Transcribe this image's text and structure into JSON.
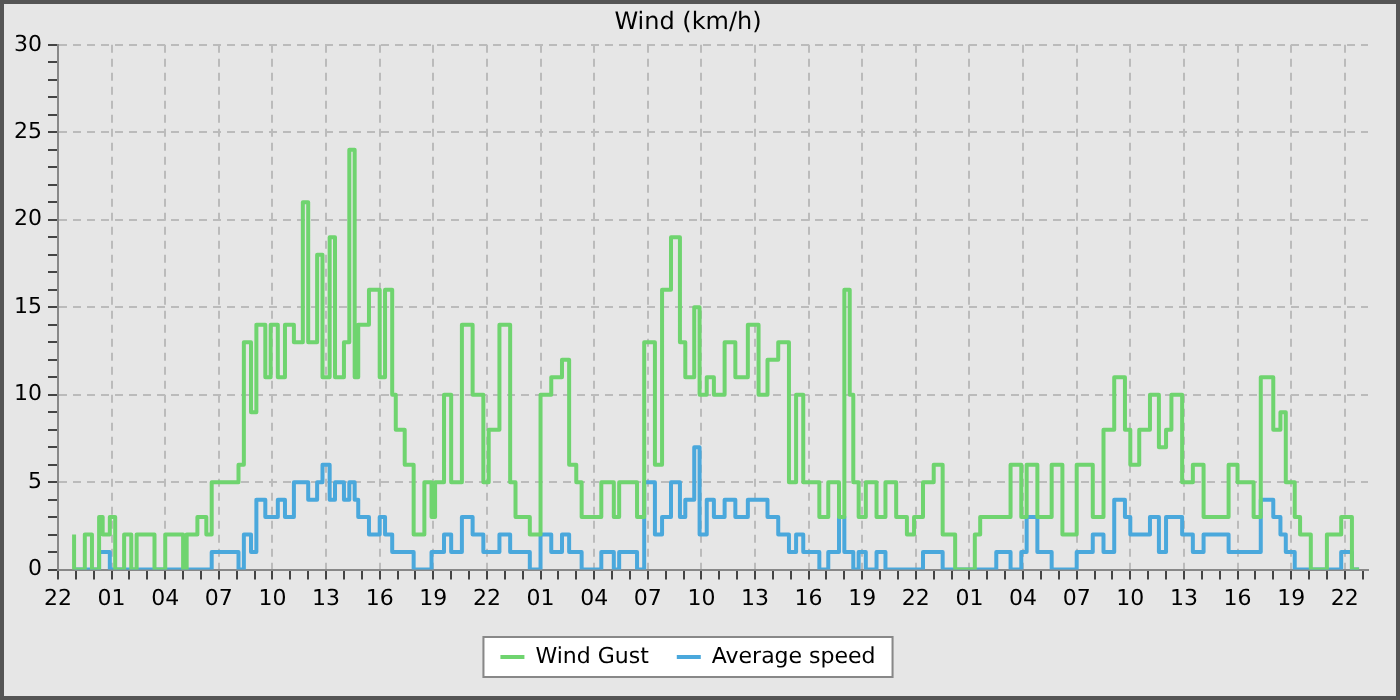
{
  "chart_data": {
    "type": "step",
    "title": "Wind (km/h)",
    "x": [
      "--01-01T22:54",
      "--01-01T23:30",
      "--01-01T23:54",
      "--01-02T00:18",
      "--01-02T00:30",
      "--01-02T00:54",
      "--01-02T01:12",
      "--01-02T01:42",
      "--01-02T02:06",
      "--01-02T02:24",
      "--01-02T03:24",
      "--01-02T04:00",
      "--01-02T05:00",
      "--01-02T05:12",
      "--01-02T05:48",
      "--01-02T06:18",
      "--01-02T06:36",
      "--01-02T08:06",
      "--01-02T08:24",
      "--01-02T08:48",
      "--01-02T09:06",
      "--01-02T09:36",
      "--01-02T09:54",
      "--01-02T10:18",
      "--01-02T10:42",
      "--01-02T11:12",
      "--01-02T11:42",
      "--01-02T12:00",
      "--01-02T12:30",
      "--01-02T12:48",
      "--01-02T13:12",
      "--01-02T13:30",
      "--01-02T14:00",
      "--01-02T14:18",
      "--01-02T14:36",
      "--01-02T14:48",
      "--01-02T15:24",
      "--01-02T16:00",
      "--01-02T16:18",
      "--01-02T16:42",
      "--01-02T16:54",
      "--01-02T17:24",
      "--01-02T17:54",
      "--01-02T18:30",
      "--01-02T18:54",
      "--01-02T19:06",
      "--01-02T19:36",
      "--01-02T20:00",
      "--01-02T20:36",
      "--01-02T21:12",
      "--01-02T21:48",
      "--01-02T22:06",
      "--01-02T22:42",
      "--01-02T23:18",
      "--01-02T23:36",
      "--01-03T00:24",
      "--01-03T01:00",
      "--01-03T01:36",
      "--01-03T02:12",
      "--01-03T02:36",
      "--01-03T03:00",
      "--01-03T03:18",
      "--01-03T04:24",
      "--01-03T05:06",
      "--01-03T05:24",
      "--01-03T06:24",
      "--01-03T06:48",
      "--01-03T07:24",
      "--01-03T07:48",
      "--01-03T08:18",
      "--01-03T08:48",
      "--01-03T09:06",
      "--01-03T09:36",
      "--01-03T09:54",
      "--01-03T10:18",
      "--01-03T10:42",
      "--01-03T11:18",
      "--01-03T11:54",
      "--01-03T12:36",
      "--01-03T13:12",
      "--01-03T13:42",
      "--01-03T14:18",
      "--01-03T14:54",
      "--01-03T15:18",
      "--01-03T15:42",
      "--01-03T16:36",
      "--01-03T17:06",
      "--01-03T17:42",
      "--01-03T18:00",
      "--01-03T18:18",
      "--01-03T18:30",
      "--01-03T18:48",
      "--01-03T19:12",
      "--01-03T19:48",
      "--01-03T20:18",
      "--01-03T20:54",
      "--01-03T21:30",
      "--01-03T21:54",
      "--01-03T22:24",
      "--01-03T23:00",
      "--01-03T23:30",
      "--01-04T00:12",
      "--01-04T01:18",
      "--01-04T01:36",
      "--01-04T02:30",
      "--01-04T03:18",
      "--01-04T03:54",
      "--01-04T04:12",
      "--01-04T04:48",
      "--01-04T05:36",
      "--01-04T06:12",
      "--01-04T07:00",
      "--01-04T07:54",
      "--01-04T08:30",
      "--01-04T09:06",
      "--01-04T09:42",
      "--01-04T10:00",
      "--01-04T10:30",
      "--01-04T11:06",
      "--01-04T11:36",
      "--01-04T12:00",
      "--01-04T12:18",
      "--01-04T12:54",
      "--01-04T13:30",
      "--01-04T14:06",
      "--01-04T14:42",
      "--01-04T15:30",
      "--01-04T16:00",
      "--01-04T16:54",
      "--01-04T17:18",
      "--01-04T18:00",
      "--01-04T18:24",
      "--01-04T18:42",
      "--01-04T19:12",
      "--01-04T19:30",
      "--01-04T20:06",
      "--01-04T21:00",
      "--01-04T21:48",
      "--01-04T22:24",
      "--01-04T22:48"
    ],
    "series": [
      {
        "name": "Wind Gust",
        "color": "#6fd46f",
        "values": [
          2,
          0,
          2,
          0,
          3,
          2,
          3,
          0,
          2,
          0,
          2,
          0,
          2,
          0,
          2,
          3,
          2,
          5,
          6,
          13,
          9,
          14,
          11,
          14,
          11,
          14,
          13,
          21,
          13,
          18,
          11,
          19,
          11,
          13,
          24,
          11,
          14,
          16,
          11,
          16,
          10,
          8,
          6,
          2,
          5,
          3,
          5,
          10,
          5,
          14,
          10,
          5,
          8,
          14,
          5,
          3,
          2,
          10,
          11,
          12,
          6,
          5,
          3,
          5,
          3,
          5,
          3,
          13,
          6,
          16,
          19,
          13,
          11,
          15,
          10,
          11,
          10,
          13,
          11,
          14,
          10,
          12,
          13,
          5,
          10,
          5,
          3,
          5,
          3,
          16,
          10,
          5,
          3,
          5,
          3,
          5,
          3,
          2,
          3,
          5,
          6,
          2,
          0,
          2,
          3,
          3,
          6,
          3,
          6,
          3,
          6,
          2,
          6,
          3,
          8,
          11,
          8,
          6,
          8,
          10,
          7,
          8,
          10,
          5,
          6,
          3,
          3,
          6,
          5,
          3,
          11,
          8,
          9,
          5,
          3,
          2,
          0,
          2,
          3,
          0
        ]
      },
      {
        "name": "Average speed",
        "color": "#4aa8dc",
        "values": [
          0,
          0,
          0,
          0,
          1,
          1,
          0,
          0,
          0,
          0,
          0,
          0,
          0,
          0,
          0,
          0,
          0,
          1,
          0,
          2,
          1,
          4,
          3,
          3,
          4,
          3,
          5,
          5,
          4,
          5,
          6,
          4,
          5,
          4,
          5,
          4,
          3,
          2,
          3,
          2,
          1,
          1,
          1,
          0,
          0,
          1,
          1,
          2,
          1,
          3,
          2,
          1,
          1,
          2,
          1,
          1,
          0,
          2,
          1,
          2,
          1,
          1,
          0,
          1,
          0,
          1,
          0,
          5,
          2,
          3,
          5,
          3,
          4,
          7,
          2,
          4,
          3,
          4,
          3,
          4,
          4,
          3,
          2,
          1,
          2,
          1,
          0,
          1,
          3,
          1,
          1,
          0,
          1,
          0,
          1,
          0,
          0,
          0,
          0,
          1,
          1,
          0,
          0,
          0,
          0,
          1,
          0,
          1,
          3,
          1,
          0,
          0,
          1,
          2,
          1,
          4,
          3,
          2,
          2,
          3,
          1,
          3,
          3,
          2,
          1,
          2,
          2,
          1,
          1,
          1,
          4,
          3,
          2,
          1,
          0,
          0,
          0,
          0,
          1,
          0
        ]
      }
    ],
    "xlim": [
      "--01-01T22:00",
      "--01-04T23:18"
    ],
    "xticks": [
      {
        "value": "--01-01T22:00",
        "label": "22"
      },
      {
        "value": "--01-01T23:00",
        "label": null
      },
      {
        "value": "--01-02T00:00",
        "label": null
      },
      {
        "value": "--01-02T01:00",
        "label": "01"
      },
      {
        "value": "--01-02T02:00",
        "label": null
      },
      {
        "value": "--01-02T03:00",
        "label": null
      },
      {
        "value": "--01-02T04:00",
        "label": "04"
      },
      {
        "value": "--01-02T05:00",
        "label": null
      },
      {
        "value": "--01-02T06:00",
        "label": null
      },
      {
        "value": "--01-02T07:00",
        "label": "07"
      },
      {
        "value": "--01-02T08:00",
        "label": null
      },
      {
        "value": "--01-02T09:00",
        "label": null
      },
      {
        "value": "--01-02T10:00",
        "label": "10"
      },
      {
        "value": "--01-02T11:00",
        "label": null
      },
      {
        "value": "--01-02T12:00",
        "label": null
      },
      {
        "value": "--01-02T13:00",
        "label": "13"
      },
      {
        "value": "--01-02T14:00",
        "label": null
      },
      {
        "value": "--01-02T15:00",
        "label": null
      },
      {
        "value": "--01-02T16:00",
        "label": "16"
      },
      {
        "value": "--01-02T17:00",
        "label": null
      },
      {
        "value": "--01-02T18:00",
        "label": null
      },
      {
        "value": "--01-02T19:00",
        "label": "19"
      },
      {
        "value": "--01-02T20:00",
        "label": null
      },
      {
        "value": "--01-02T21:00",
        "label": null
      },
      {
        "value": "--01-02T22:00",
        "label": "22"
      },
      {
        "value": "--01-02T23:00",
        "label": null
      },
      {
        "value": "--01-03T00:00",
        "label": null
      },
      {
        "value": "--01-03T01:00",
        "label": "01"
      },
      {
        "value": "--01-03T02:00",
        "label": null
      },
      {
        "value": "--01-03T03:00",
        "label": null
      },
      {
        "value": "--01-03T04:00",
        "label": "04"
      },
      {
        "value": "--01-03T05:00",
        "label": null
      },
      {
        "value": "--01-03T06:00",
        "label": null
      },
      {
        "value": "--01-03T07:00",
        "label": "07"
      },
      {
        "value": "--01-03T08:00",
        "label": null
      },
      {
        "value": "--01-03T09:00",
        "label": null
      },
      {
        "value": "--01-03T10:00",
        "label": "10"
      },
      {
        "value": "--01-03T11:00",
        "label": null
      },
      {
        "value": "--01-03T12:00",
        "label": null
      },
      {
        "value": "--01-03T13:00",
        "label": "13"
      },
      {
        "value": "--01-03T14:00",
        "label": null
      },
      {
        "value": "--01-03T15:00",
        "label": null
      },
      {
        "value": "--01-03T16:00",
        "label": "16"
      },
      {
        "value": "--01-03T17:00",
        "label": null
      },
      {
        "value": "--01-03T18:00",
        "label": null
      },
      {
        "value": "--01-03T19:00",
        "label": "19"
      },
      {
        "value": "--01-03T20:00",
        "label": null
      },
      {
        "value": "--01-03T21:00",
        "label": null
      },
      {
        "value": "--01-03T22:00",
        "label": "22"
      },
      {
        "value": "--01-03T23:00",
        "label": null
      },
      {
        "value": "--01-04T00:00",
        "label": null
      },
      {
        "value": "--01-04T01:00",
        "label": "01"
      },
      {
        "value": "--01-04T02:00",
        "label": null
      },
      {
        "value": "--01-04T03:00",
        "label": null
      },
      {
        "value": "--01-04T04:00",
        "label": "04"
      },
      {
        "value": "--01-04T05:00",
        "label": null
      },
      {
        "value": "--01-04T06:00",
        "label": null
      },
      {
        "value": "--01-04T07:00",
        "label": "07"
      },
      {
        "value": "--01-04T08:00",
        "label": null
      },
      {
        "value": "--01-04T09:00",
        "label": null
      },
      {
        "value": "--01-04T10:00",
        "label": "10"
      },
      {
        "value": "--01-04T11:00",
        "label": null
      },
      {
        "value": "--01-04T12:00",
        "label": null
      },
      {
        "value": "--01-04T13:00",
        "label": "13"
      },
      {
        "value": "--01-04T14:00",
        "label": null
      },
      {
        "value": "--01-04T15:00",
        "label": null
      },
      {
        "value": "--01-04T16:00",
        "label": "16"
      },
      {
        "value": "--01-04T17:00",
        "label": null
      },
      {
        "value": "--01-04T18:00",
        "label": null
      },
      {
        "value": "--01-04T19:00",
        "label": "19"
      },
      {
        "value": "--01-04T20:00",
        "label": null
      },
      {
        "value": "--01-04T21:00",
        "label": null
      },
      {
        "value": "--01-04T22:00",
        "label": "22"
      },
      {
        "value": "--01-04T23:00",
        "label": null
      }
    ],
    "ylim": [
      0,
      30
    ],
    "yticks": [
      0,
      {
        "value": 1,
        "label": null
      },
      {
        "value": 2,
        "label": null
      },
      {
        "value": 3,
        "label": null
      },
      {
        "value": 4,
        "label": null
      },
      5,
      {
        "value": 6,
        "label": null
      },
      {
        "value": 7,
        "label": null
      },
      {
        "value": 8,
        "label": null
      },
      {
        "value": 9,
        "label": null
      },
      10,
      {
        "value": 11,
        "label": null
      },
      {
        "value": 12,
        "label": null
      },
      {
        "value": 13,
        "label": null
      },
      {
        "value": 14,
        "label": null
      },
      15,
      {
        "value": 16,
        "label": null
      },
      {
        "value": 17,
        "label": null
      },
      {
        "value": 18,
        "label": null
      },
      {
        "value": 19,
        "label": null
      },
      20,
      {
        "value": 21,
        "label": null
      },
      {
        "value": 22,
        "label": null
      },
      {
        "value": 23,
        "label": null
      },
      {
        "value": 24,
        "label": null
      },
      25,
      {
        "value": 26,
        "label": null
      },
      {
        "value": 27,
        "label": null
      },
      {
        "value": 28,
        "label": null
      },
      {
        "value": 29,
        "label": null
      },
      30
    ],
    "grid": true,
    "legend": "bottom",
    "marker": "none",
    "line_style": "solid"
  }
}
